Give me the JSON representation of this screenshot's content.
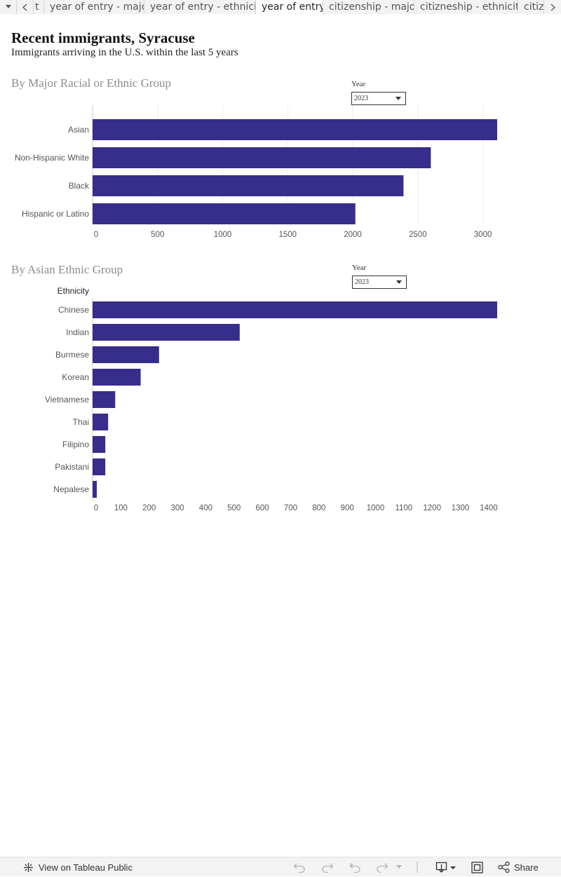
{
  "tabs": {
    "partial_left": "t",
    "items": [
      {
        "label": "year of entry - major",
        "active": false
      },
      {
        "label": "year of entry - ethnicity",
        "active": false
      },
      {
        "label": "year of entry",
        "active": true
      },
      {
        "label": "citizenship - major",
        "active": false
      },
      {
        "label": "citizneship - ethnicity",
        "active": false
      },
      {
        "label": "citiz",
        "active": false
      }
    ]
  },
  "header": {
    "title": "Recent immigrants, Syracuse",
    "subtitle": "Immigrants arriving in the U.S. within the last 5 years"
  },
  "major_section": {
    "heading": "By Major Racial or Ethnic Group",
    "filter_label": "Year",
    "filter_value": "2023"
  },
  "asian_section": {
    "heading": "By Asian Ethnic Group",
    "filter_label": "Year",
    "filter_value": "2023"
  },
  "colors": {
    "bar": "#372d8a",
    "grid": "#ececec",
    "axis": "#cfcfcf"
  },
  "chart_data": [
    {
      "type": "bar",
      "orientation": "horizontal",
      "title": "By Major Racial or Ethnic Group",
      "categories": [
        "Asian",
        "Non-Hispanic White",
        "Black",
        "Hispanic or Latino"
      ],
      "values": [
        3110,
        2600,
        2390,
        2020
      ],
      "xlim": [
        0,
        3110
      ],
      "xticks": [
        0,
        500,
        1000,
        1500,
        2000,
        2500,
        3000
      ],
      "row_header": "",
      "grid": true
    },
    {
      "type": "bar",
      "orientation": "horizontal",
      "title": "By Asian Ethnic Group",
      "categories": [
        "Chinese",
        "Indian",
        "Burmese",
        "Korean",
        "Vietnamese",
        "Thai",
        "Filipino",
        "Pakistani",
        "Nepalese"
      ],
      "values": [
        1430,
        520,
        235,
        170,
        80,
        55,
        45,
        45,
        15
      ],
      "xlim": [
        0,
        1430
      ],
      "xticks": [
        0,
        100,
        200,
        300,
        400,
        500,
        600,
        700,
        800,
        900,
        1000,
        1100,
        1200,
        1300,
        1400
      ],
      "row_header": "Ethnicity",
      "grid": false
    }
  ],
  "toolbar": {
    "view_label": "View on Tableau Public",
    "share_label": "Share"
  }
}
